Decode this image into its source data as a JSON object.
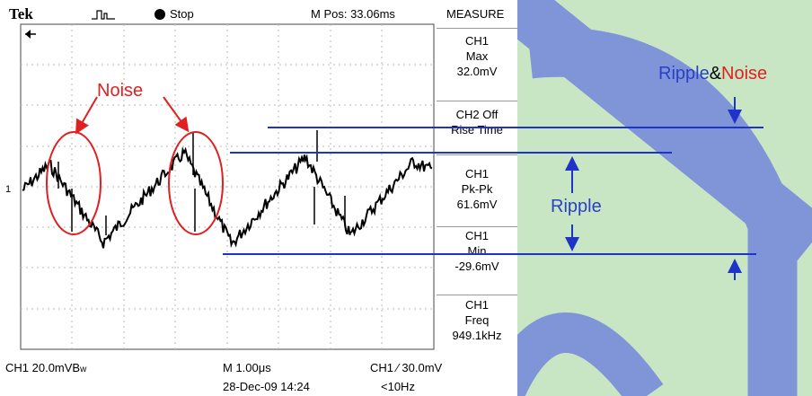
{
  "scope": {
    "brand": "Tek",
    "trigger_state": "Stop",
    "m_pos": "M Pos: 33.06ms",
    "menu_title": "MEASURE",
    "measurements": [
      {
        "lines": [
          "CH1",
          "Max",
          "32.0mV"
        ]
      },
      {
        "lines": [
          "CH2 Off",
          "Rise Time"
        ]
      },
      {
        "lines": [
          "CH1",
          "Pk-Pk",
          "61.6mV"
        ]
      },
      {
        "lines": [
          "CH1",
          "Min",
          "-29.6mV"
        ]
      },
      {
        "lines": [
          "CH1",
          "Freq",
          "949.1kHz"
        ]
      }
    ],
    "ch1_scale": "CH1  20.0mVB",
    "ch1_scale_suffix": "w",
    "timebase": "M 1.00μs",
    "trigger": "CH1  ∕  30.0mV",
    "datetime": "28-Dec-09 14:24",
    "freq_limit": "<10Hz",
    "ch1_marker": "1"
  },
  "annotations": {
    "noise": "Noise",
    "ripple": "Ripple",
    "ripple_noise_a": "Ripple",
    "ripple_noise_amp": "&",
    "ripple_noise_b": "Noise"
  },
  "colors": {
    "background": "#c9e6c4",
    "stripe": "#7f95d8",
    "line_blue": "#1f33c8",
    "label_blue": "#2b3fc7",
    "noise_red": "#e02020"
  }
}
